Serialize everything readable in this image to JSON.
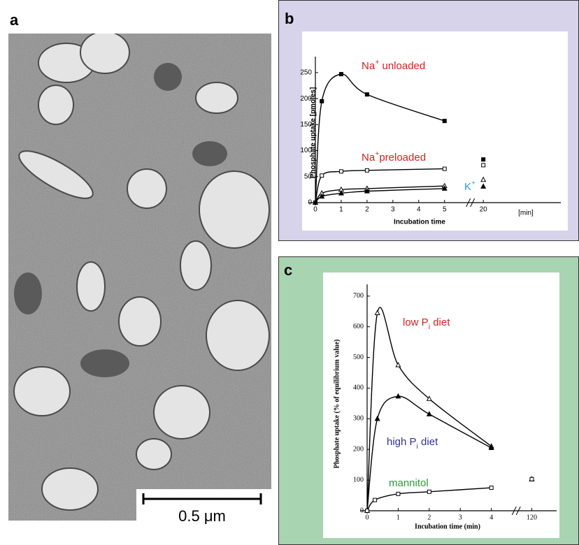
{
  "panel_a": {
    "label": "a",
    "scale_bar": "0.5 μm"
  },
  "chart_data": [
    {
      "type": "line",
      "panel_label": "b",
      "background": "#d6d3ea",
      "ylabel": "Phosphate uptake [pmoles]",
      "xlabel": "Incubation time",
      "x_unit": "[min]",
      "xlim": [
        0,
        23
      ],
      "xbreak": [
        6,
        19.5
      ],
      "xticks": [
        0,
        1,
        2,
        3,
        4,
        5,
        20
      ],
      "ylim": [
        0,
        270
      ],
      "yticks": [
        0,
        50,
        100,
        150,
        200,
        250
      ],
      "series": [
        {
          "color": "#000000",
          "marker": "square-filled",
          "x": [
            0,
            0.25,
            1,
            2,
            5,
            20
          ],
          "values": [
            0,
            195,
            247,
            208,
            157,
            83
          ]
        },
        {
          "color": "#000000",
          "marker": "square-open",
          "x": [
            0,
            0.25,
            1,
            2,
            5,
            20
          ],
          "values": [
            0,
            52,
            60,
            62,
            65,
            72
          ]
        },
        {
          "color": "#000000",
          "marker": "triangle-open",
          "x": [
            0,
            0.25,
            1,
            2,
            5,
            20
          ],
          "values": [
            0,
            18,
            25,
            27,
            32,
            44
          ]
        },
        {
          "color": "#000000",
          "marker": "triangle-filled",
          "x": [
            0,
            0.25,
            1,
            2,
            5,
            20
          ],
          "values": [
            0,
            12,
            18,
            22,
            27,
            31
          ]
        }
      ],
      "annotations": [
        {
          "color": "#d42020",
          "parts": [
            {
              "text": "Na"
            },
            {
              "text": "+",
              "sup": true
            },
            {
              "text": " unloaded"
            }
          ]
        },
        {
          "color": "#d42020",
          "parts": [
            {
              "text": "Na"
            },
            {
              "text": "+",
              "sup": true
            },
            {
              "text": "preloaded"
            }
          ]
        },
        {
          "color": "#2a9bd6",
          "parts": [
            {
              "text": "K"
            },
            {
              "text": "+",
              "sup": true
            }
          ]
        }
      ]
    },
    {
      "type": "line",
      "panel_label": "c",
      "background": "#a8d4b2",
      "ylabel": "Phosphate uptake (% of equilibrium value)",
      "xlabel": "Incubation time (min)",
      "xlim": [
        0,
        120.8
      ],
      "xbreak": [
        4.8,
        119.5
      ],
      "xticks": [
        0,
        1,
        2,
        3,
        4,
        120
      ],
      "ylim": [
        0,
        720
      ],
      "yticks": [
        0,
        100,
        200,
        300,
        400,
        500,
        600,
        700
      ],
      "series": [
        {
          "color": "#000000",
          "marker": "triangle-open",
          "x": [
            0,
            0.33,
            1,
            2,
            4,
            120
          ],
          "values": [
            0,
            645,
            475,
            365,
            210,
            103
          ]
        },
        {
          "color": "#000000",
          "marker": "triangle-filled",
          "x": [
            0,
            0.33,
            1,
            2,
            4,
            120
          ],
          "values": [
            0,
            300,
            373,
            315,
            205,
            103
          ]
        },
        {
          "color": "#000000",
          "marker": "square-open",
          "x": [
            0,
            0.25,
            1,
            2,
            4,
            120
          ],
          "values": [
            0,
            35,
            55,
            62,
            75,
            103
          ]
        }
      ],
      "annotations": [
        {
          "color": "#d42020",
          "parts": [
            {
              "text": "low P"
            },
            {
              "text": "i",
              "sub": true
            },
            {
              "text": " diet"
            }
          ]
        },
        {
          "color": "#333399",
          "parts": [
            {
              "text": "high P"
            },
            {
              "text": "i",
              "sub": true
            },
            {
              "text": " diet"
            }
          ]
        },
        {
          "color": "#2a9a3a",
          "parts": [
            {
              "text": "mannitol"
            }
          ]
        }
      ]
    }
  ]
}
